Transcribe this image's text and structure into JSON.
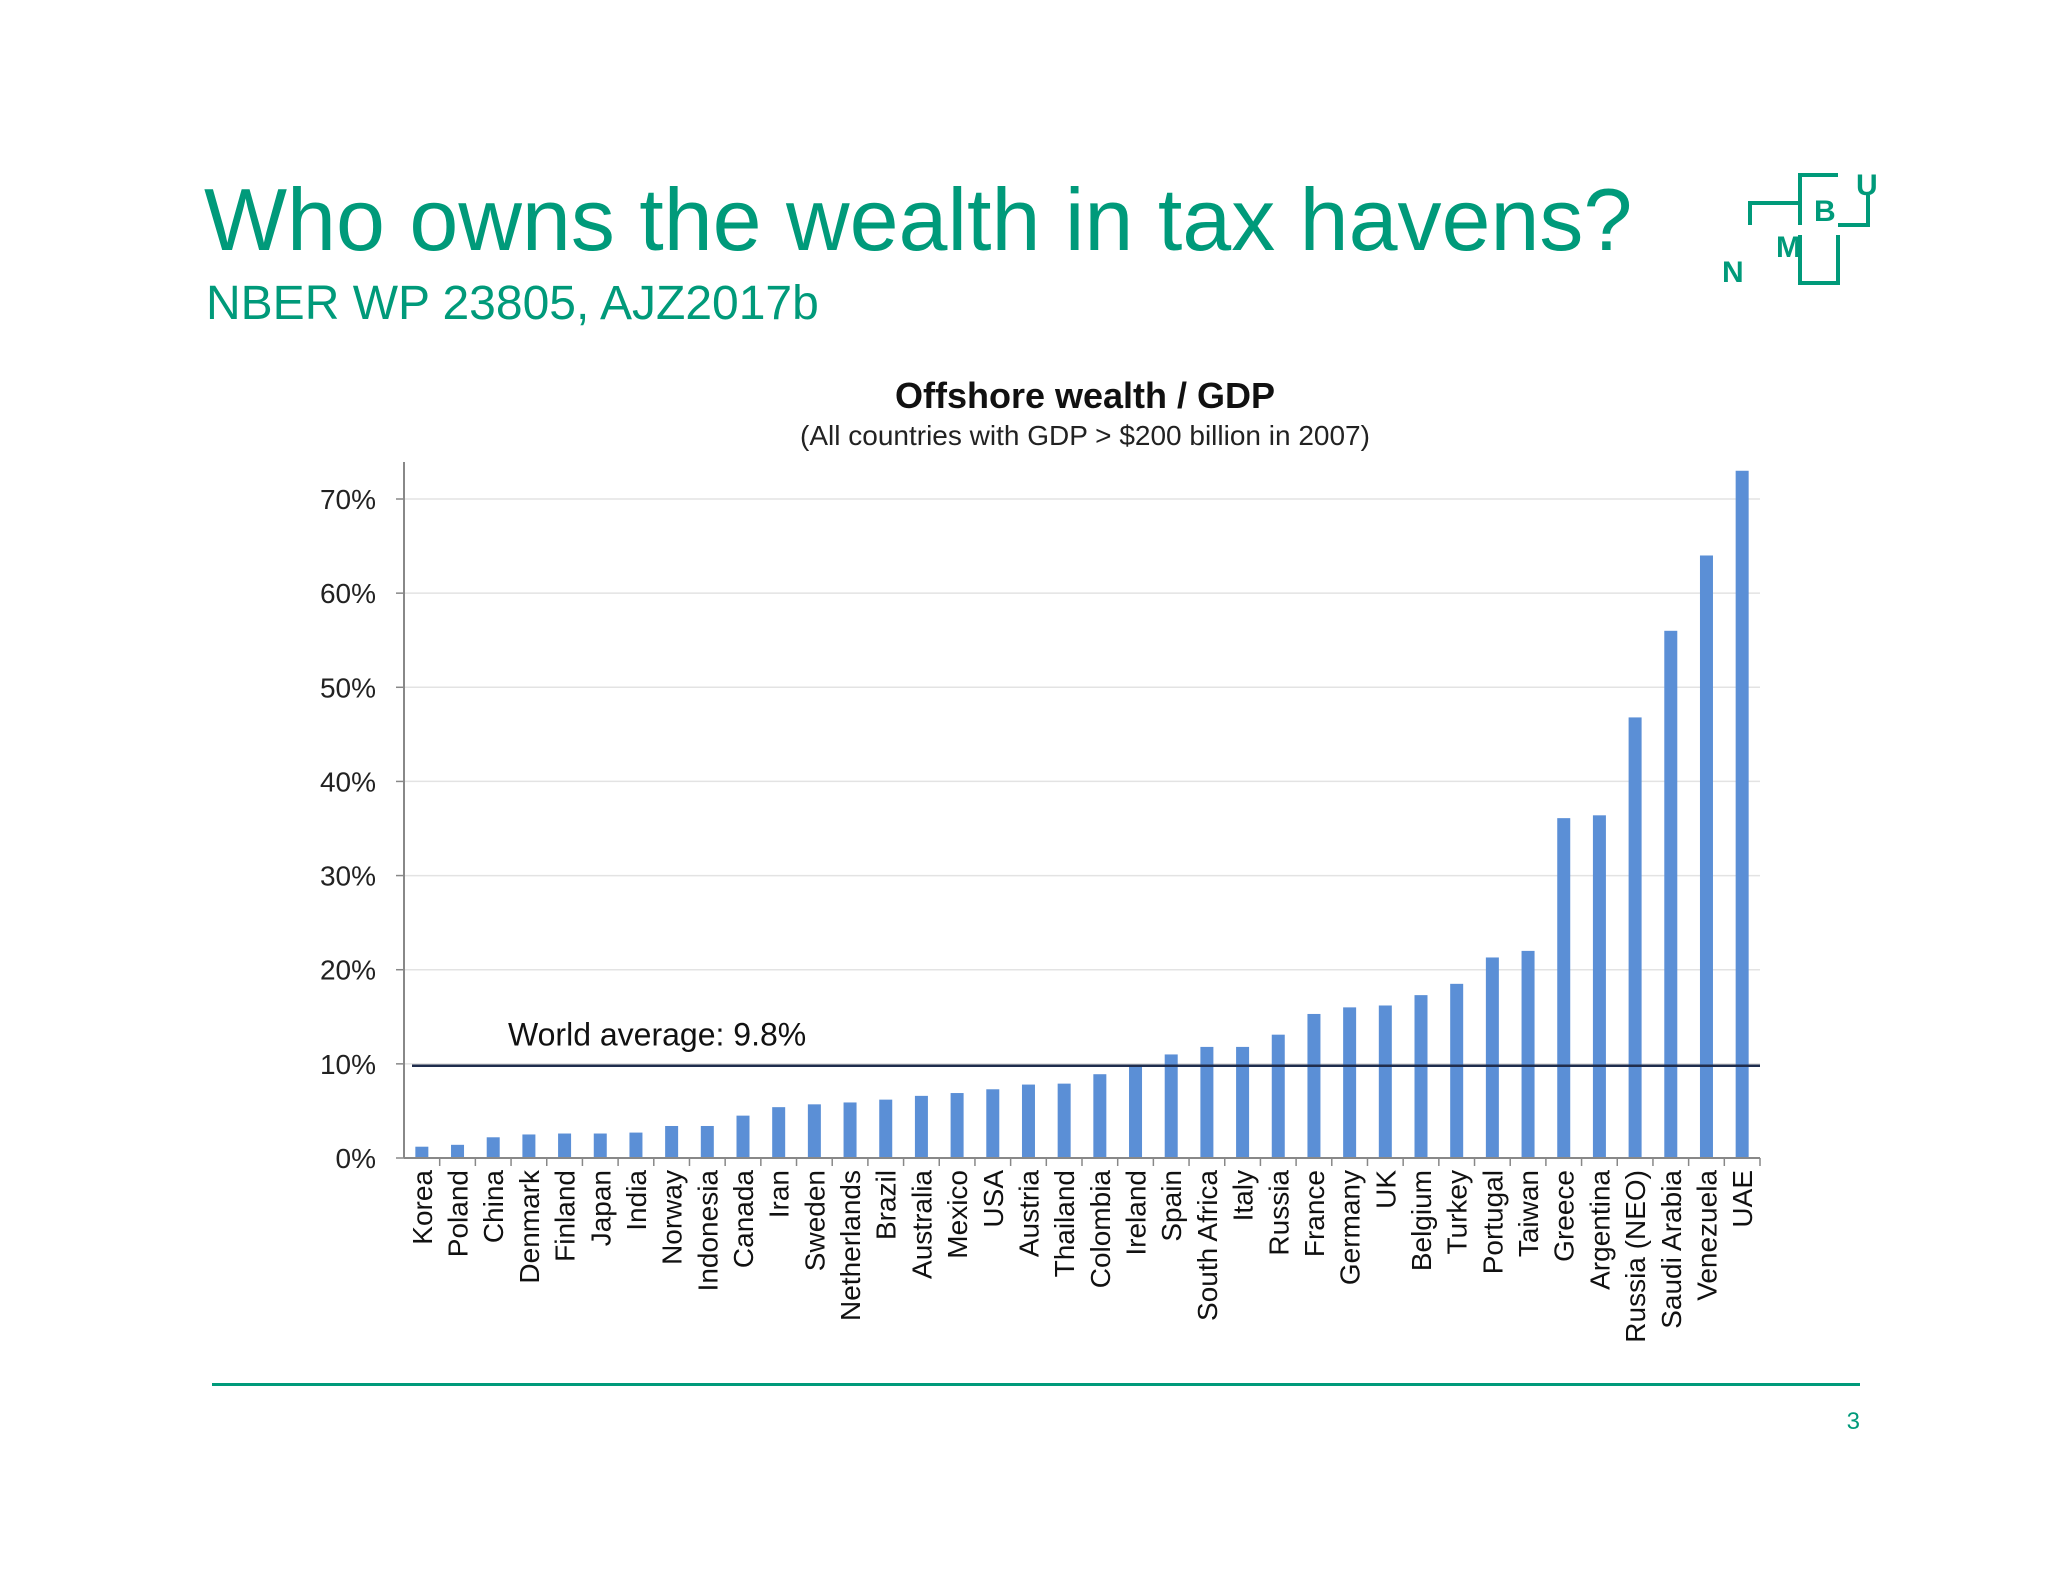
{
  "slide": {
    "title": "Who owns the wealth in tax havens?",
    "subtitle": "NBER WP 23805, AJZ2017b",
    "page_number": "3",
    "accent_color": "#009a7a"
  },
  "logo": {
    "letters": [
      "N",
      "M",
      "B",
      "U"
    ],
    "icon": "nmbu-logo-icon"
  },
  "chart_data": {
    "type": "bar",
    "title": "Offshore wealth / GDP",
    "subtitle": "(All countries with GDP > $200 billion in 2007)",
    "categories": [
      "Korea",
      "Poland",
      "China",
      "Denmark",
      "Finland",
      "Japan",
      "India",
      "Norway",
      "Indonesia",
      "Canada",
      "Iran",
      "Sweden",
      "Netherlands",
      "Brazil",
      "Australia",
      "Mexico",
      "USA",
      "Austria",
      "Thailand",
      "Colombia",
      "Ireland",
      "Spain",
      "South Africa",
      "Italy",
      "Russia",
      "France",
      "Germany",
      "UK",
      "Belgium",
      "Turkey",
      "Portugal",
      "Taiwan",
      "Greece",
      "Argentina",
      "Russia (NEO)",
      "Saudi Arabia",
      "Venezuela",
      "UAE"
    ],
    "values": [
      1.2,
      1.4,
      2.2,
      2.5,
      2.6,
      2.6,
      2.7,
      3.4,
      3.4,
      4.5,
      5.4,
      5.7,
      5.9,
      6.2,
      6.6,
      6.9,
      7.3,
      7.8,
      7.9,
      8.9,
      9.9,
      11.0,
      11.8,
      11.8,
      13.1,
      15.3,
      16.0,
      16.2,
      17.3,
      18.5,
      21.3,
      22.0,
      36.1,
      36.4,
      46.8,
      56.0,
      64.0,
      73.0
    ],
    "value_format": "percent",
    "yticks": [
      0,
      10,
      20,
      30,
      40,
      50,
      60,
      70
    ],
    "ytick_labels": [
      "0%",
      "10%",
      "20%",
      "30%",
      "40%",
      "50%",
      "60%",
      "70%"
    ],
    "ylim": [
      0,
      73.5
    ],
    "reference_line": {
      "value": 9.8,
      "label": "World average:  9.8%",
      "color": "#1f2d4d"
    },
    "bar_color": "#5b8fd6",
    "grid": true,
    "xlabel": "",
    "ylabel": ""
  }
}
